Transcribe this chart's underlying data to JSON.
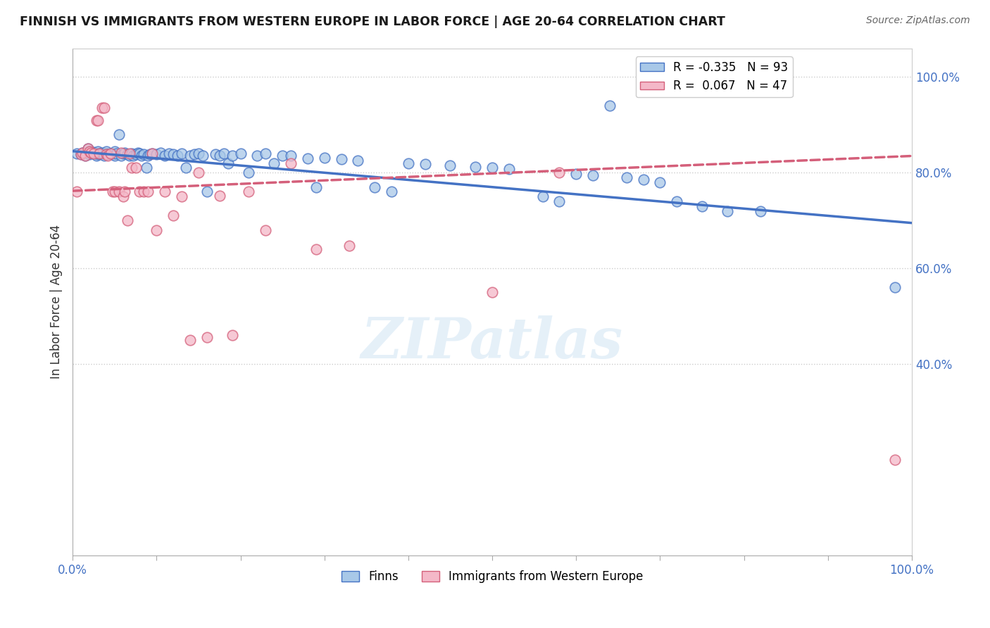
{
  "title": "FINNISH VS IMMIGRANTS FROM WESTERN EUROPE IN LABOR FORCE | AGE 20-64 CORRELATION CHART",
  "source": "Source: ZipAtlas.com",
  "ylabel": "In Labor Force | Age 20-64",
  "xlabel": "",
  "xlim": [
    0.0,
    1.0
  ],
  "ylim": [
    0.0,
    1.06
  ],
  "yticks": [
    0.4,
    0.6,
    0.8,
    1.0
  ],
  "ytick_labels": [
    "40.0%",
    "60.0%",
    "80.0%",
    "100.0%"
  ],
  "xtick_labels_left": "0.0%",
  "xtick_labels_right": "100.0%",
  "legend_r_finns": "-0.335",
  "legend_n_finns": "93",
  "legend_r_immigrants": "0.067",
  "legend_n_immigrants": "47",
  "color_finns": "#a8c8e8",
  "color_immigrants": "#f4b8c8",
  "color_finns_line": "#4472c4",
  "color_immigrants_line": "#d45f7a",
  "background_color": "#ffffff",
  "watermark": "ZIPatlas",
  "finns_line_start_y": 0.845,
  "finns_line_end_y": 0.695,
  "immigrants_line_start_y": 0.762,
  "immigrants_line_end_y": 0.835,
  "finns_x": [
    0.005,
    0.01,
    0.012,
    0.015,
    0.018,
    0.02,
    0.02,
    0.022,
    0.025,
    0.025,
    0.028,
    0.03,
    0.03,
    0.032,
    0.035,
    0.035,
    0.038,
    0.04,
    0.04,
    0.042,
    0.045,
    0.048,
    0.05,
    0.05,
    0.052,
    0.055,
    0.058,
    0.06,
    0.062,
    0.065,
    0.068,
    0.07,
    0.072,
    0.075,
    0.078,
    0.08,
    0.082,
    0.085,
    0.088,
    0.09,
    0.092,
    0.095,
    0.1,
    0.105,
    0.11,
    0.115,
    0.12,
    0.125,
    0.13,
    0.135,
    0.14,
    0.145,
    0.15,
    0.155,
    0.16,
    0.17,
    0.175,
    0.18,
    0.185,
    0.19,
    0.2,
    0.21,
    0.22,
    0.23,
    0.24,
    0.25,
    0.26,
    0.28,
    0.29,
    0.3,
    0.32,
    0.34,
    0.36,
    0.38,
    0.4,
    0.42,
    0.45,
    0.48,
    0.5,
    0.52,
    0.56,
    0.58,
    0.6,
    0.62,
    0.64,
    0.66,
    0.68,
    0.7,
    0.72,
    0.75,
    0.78,
    0.82,
    0.98
  ],
  "finns_y": [
    0.84,
    0.838,
    0.842,
    0.836,
    0.85,
    0.844,
    0.838,
    0.842,
    0.84,
    0.843,
    0.836,
    0.845,
    0.838,
    0.84,
    0.838,
    0.842,
    0.836,
    0.84,
    0.844,
    0.838,
    0.84,
    0.838,
    0.845,
    0.836,
    0.84,
    0.842,
    0.836,
    0.84,
    0.842,
    0.838,
    0.836,
    0.84,
    0.835,
    0.838,
    0.842,
    0.84,
    0.836,
    0.838,
    0.84,
    0.836,
    0.838,
    0.84,
    0.838,
    0.842,
    0.836,
    0.84,
    0.838,
    0.835,
    0.84,
    0.838,
    0.836,
    0.838,
    0.84,
    0.836,
    0.834,
    0.838,
    0.836,
    0.84,
    0.838,
    0.836,
    0.84,
    0.838,
    0.836,
    0.84,
    0.838,
    0.836,
    0.835,
    0.83,
    0.835,
    0.832,
    0.828,
    0.825,
    0.825,
    0.822,
    0.82,
    0.818,
    0.815,
    0.812,
    0.81,
    0.808,
    0.805,
    0.8,
    0.798,
    0.795,
    0.94,
    0.79,
    0.785,
    0.78,
    0.775,
    0.77,
    0.765,
    0.758,
    0.56
  ],
  "finns_y_scatter": [
    0.84,
    0.838,
    0.842,
    0.836,
    0.85,
    0.844,
    0.838,
    0.842,
    0.84,
    0.843,
    0.836,
    0.845,
    0.838,
    0.84,
    0.838,
    0.842,
    0.836,
    0.84,
    0.844,
    0.838,
    0.84,
    0.838,
    0.845,
    0.836,
    0.84,
    0.88,
    0.836,
    0.84,
    0.842,
    0.838,
    0.836,
    0.84,
    0.835,
    0.838,
    0.842,
    0.84,
    0.836,
    0.838,
    0.81,
    0.836,
    0.838,
    0.84,
    0.838,
    0.842,
    0.836,
    0.84,
    0.838,
    0.835,
    0.84,
    0.81,
    0.836,
    0.838,
    0.84,
    0.836,
    0.76,
    0.838,
    0.836,
    0.84,
    0.82,
    0.836,
    0.84,
    0.8,
    0.836,
    0.84,
    0.82,
    0.836,
    0.835,
    0.83,
    0.77,
    0.832,
    0.828,
    0.825,
    0.77,
    0.76,
    0.82,
    0.818,
    0.815,
    0.812,
    0.81,
    0.808,
    0.75,
    0.74,
    0.798,
    0.795,
    0.94,
    0.79,
    0.785,
    0.78,
    0.74,
    0.73,
    0.72,
    0.72,
    0.56
  ],
  "immigrants_x": [
    0.005,
    0.01,
    0.012,
    0.015,
    0.018,
    0.02,
    0.022,
    0.025,
    0.028,
    0.03,
    0.032,
    0.035,
    0.038,
    0.04,
    0.042,
    0.045,
    0.048,
    0.05,
    0.055,
    0.058,
    0.06,
    0.062,
    0.065,
    0.068,
    0.07,
    0.075,
    0.08,
    0.085,
    0.09,
    0.095,
    0.1,
    0.11,
    0.12,
    0.13,
    0.14,
    0.15,
    0.16,
    0.175,
    0.19,
    0.21,
    0.23,
    0.26,
    0.29,
    0.33,
    0.5,
    0.58,
    0.98
  ],
  "immigrants_y_scatter": [
    0.76,
    0.838,
    0.842,
    0.836,
    0.85,
    0.844,
    0.842,
    0.84,
    0.91,
    0.91,
    0.84,
    0.936,
    0.936,
    0.838,
    0.836,
    0.84,
    0.76,
    0.76,
    0.76,
    0.842,
    0.75,
    0.76,
    0.7,
    0.84,
    0.81,
    0.81,
    0.76,
    0.76,
    0.76,
    0.84,
    0.68,
    0.76,
    0.71,
    0.75,
    0.45,
    0.8,
    0.456,
    0.752,
    0.46,
    0.76,
    0.68,
    0.82,
    0.64,
    0.648,
    0.55,
    0.8,
    0.2
  ]
}
